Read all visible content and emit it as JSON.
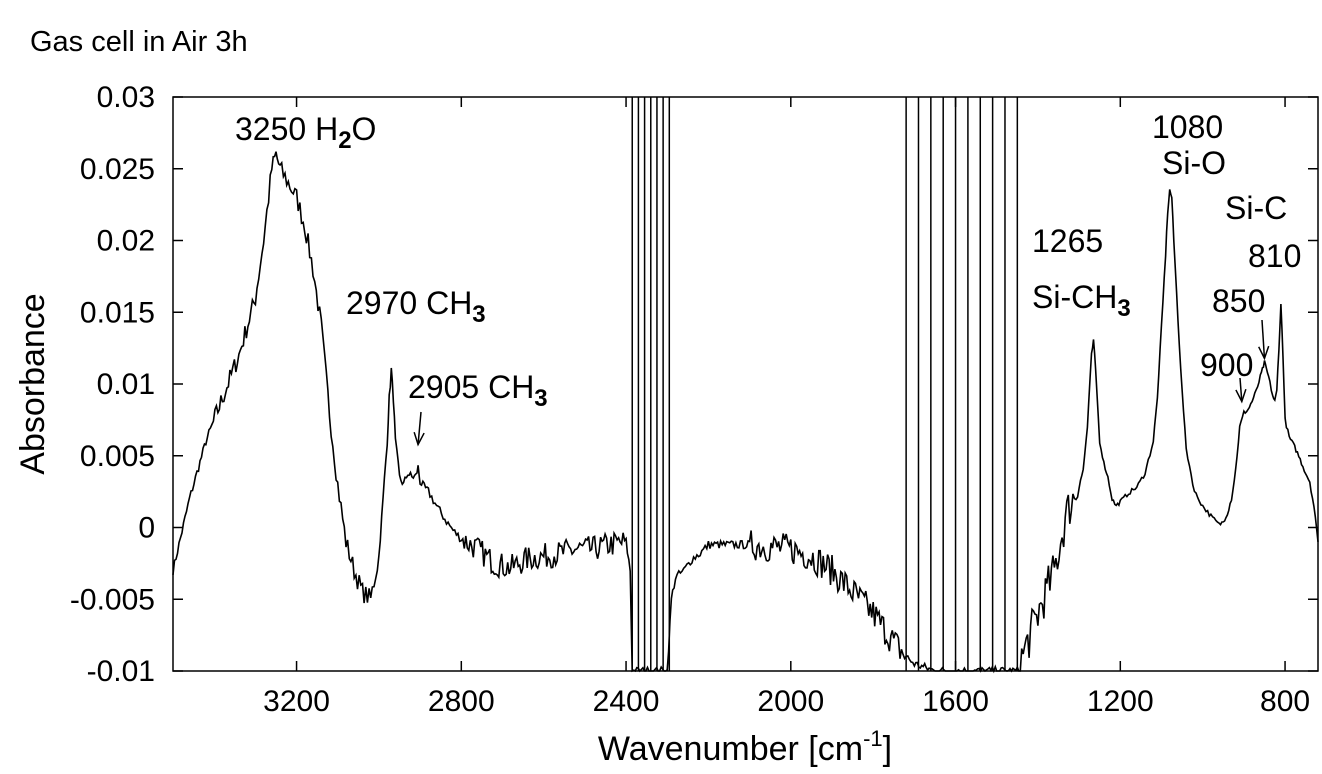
{
  "chart_data": {
    "type": "line",
    "title": "Gas cell in Air 3h",
    "xlabel": "Wavenumber [cm",
    "xlabel_sup": "-1",
    "xlabel_end": "]",
    "ylabel": "Absorbance",
    "xlim": [
      3500,
      720
    ],
    "ylim": [
      -0.01,
      0.03
    ],
    "x_reversed": true,
    "grid": false,
    "xticks": [
      3200,
      2800,
      2400,
      2000,
      1600,
      1200,
      800
    ],
    "xtick_labels": [
      "3200",
      "2800",
      "2400",
      "2000",
      "1600",
      "1200",
      "800"
    ],
    "yticks": [
      -0.01,
      -0.005,
      0,
      0.005,
      0.01,
      0.015,
      0.02,
      0.025,
      0.03
    ],
    "ytick_labels": [
      "-0.01",
      "-0.005",
      "0",
      "0.005",
      "0.01",
      "0.015",
      "0.02",
      "0.025",
      "0.03"
    ],
    "series": [
      {
        "color": "#000000",
        "x": [
          3500,
          3460,
          3420,
          3380,
          3340,
          3300,
          3280,
          3260,
          3250,
          3240,
          3220,
          3200,
          3180,
          3160,
          3140,
          3120,
          3100,
          3080,
          3060,
          3040,
          3020,
          3000,
          2990,
          2980,
          2975,
          2970,
          2965,
          2960,
          2950,
          2940,
          2930,
          2920,
          2910,
          2905,
          2900,
          2890,
          2880,
          2860,
          2840,
          2820,
          2800,
          2760,
          2720,
          2680,
          2640,
          2600,
          2560,
          2520,
          2480,
          2440,
          2400,
          2390,
          2385,
          2300,
          2290,
          2280,
          2260,
          2240,
          2220,
          2200,
          2100,
          2000,
          1950,
          1900,
          1850,
          1800,
          1750,
          1720,
          1700,
          1650,
          1600,
          1550,
          1500,
          1450,
          1400,
          1360,
          1330,
          1300,
          1290,
          1280,
          1270,
          1265,
          1260,
          1250,
          1240,
          1230,
          1220,
          1210,
          1200,
          1180,
          1160,
          1140,
          1120,
          1110,
          1100,
          1090,
          1085,
          1080,
          1075,
          1070,
          1060,
          1050,
          1040,
          1020,
          1000,
          980,
          960,
          950,
          940,
          930,
          920,
          910,
          900,
          890,
          880,
          870,
          860,
          855,
          850,
          845,
          840,
          830,
          825,
          820,
          815,
          810,
          805,
          800,
          790,
          780,
          770,
          760,
          750,
          740,
          730,
          720
        ],
        "y": [
          -0.003,
          0.002,
          0.006,
          0.009,
          0.012,
          0.016,
          0.02,
          0.025,
          0.026,
          0.025,
          0.024,
          0.023,
          0.021,
          0.018,
          0.014,
          0.008,
          0.003,
          -0.001,
          -0.003,
          -0.0045,
          -0.005,
          -0.002,
          0.002,
          0.006,
          0.009,
          0.011,
          0.009,
          0.006,
          0.0035,
          0.003,
          0.0038,
          0.0035,
          0.0036,
          0.0042,
          0.0032,
          0.0028,
          0.0025,
          0.0015,
          0.0006,
          -0.0002,
          -0.0008,
          -0.0015,
          -0.0025,
          -0.0028,
          -0.0022,
          -0.002,
          -0.0018,
          -0.0015,
          -0.0015,
          -0.0012,
          -0.001,
          -0.003,
          -0.01,
          -0.01,
          -0.005,
          -0.0035,
          -0.003,
          -0.0022,
          -0.0018,
          -0.0012,
          -0.0012,
          -0.0015,
          -0.002,
          -0.003,
          -0.0045,
          -0.006,
          -0.008,
          -0.009,
          -0.0095,
          -0.01,
          -0.01,
          -0.01,
          -0.01,
          -0.01,
          -0.006,
          -0.003,
          0.001,
          0.003,
          0.004,
          0.007,
          0.012,
          0.013,
          0.011,
          0.006,
          0.0045,
          0.0035,
          0.002,
          0.0015,
          0.0018,
          0.0024,
          0.0028,
          0.0038,
          0.006,
          0.009,
          0.014,
          0.019,
          0.022,
          0.0235,
          0.023,
          0.02,
          0.0145,
          0.0095,
          0.0055,
          0.0025,
          0.0015,
          0.0008,
          0.0002,
          0.0004,
          0.001,
          0.002,
          0.004,
          0.007,
          0.008,
          0.0082,
          0.0088,
          0.0095,
          0.0105,
          0.011,
          0.0115,
          0.011,
          0.0105,
          0.0092,
          0.0088,
          0.0095,
          0.0125,
          0.0155,
          0.012,
          0.0075,
          0.0063,
          0.0058,
          0.0052,
          0.0045,
          0.0038,
          0.0032,
          0.0015,
          -0.001
        ]
      }
    ],
    "saturated_bands": [
      {
        "from": 2385,
        "to": 2295
      },
      {
        "from": 1720,
        "to": 1450
      }
    ],
    "annotations": [
      {
        "text": "3250 H",
        "sub": "2",
        "text_after": "O"
      },
      {
        "text": "2970 CH",
        "sub": "3",
        "text_after": ""
      },
      {
        "text": "2905 CH",
        "sub": "3",
        "text_after": "",
        "arrow_at": {
          "x": 2905,
          "y": 0.0055
        }
      },
      {
        "text": "1265",
        "sub": "",
        "text_after": ""
      },
      {
        "text": "Si-CH",
        "sub": "3",
        "text_after": ""
      },
      {
        "text": "1080",
        "sub": "",
        "text_after": ""
      },
      {
        "text": "Si-O",
        "sub": "",
        "text_after": ""
      },
      {
        "text": "Si-C",
        "sub": "",
        "text_after": ""
      },
      {
        "text": "810",
        "sub": "",
        "text_after": ""
      },
      {
        "text": "850",
        "sub": "",
        "text_after": "",
        "arrow_at": {
          "x": 850,
          "y": 0.0115
        }
      },
      {
        "text": "900",
        "sub": "",
        "text_after": "",
        "arrow_at": {
          "x": 905,
          "y": 0.0085
        }
      }
    ]
  }
}
